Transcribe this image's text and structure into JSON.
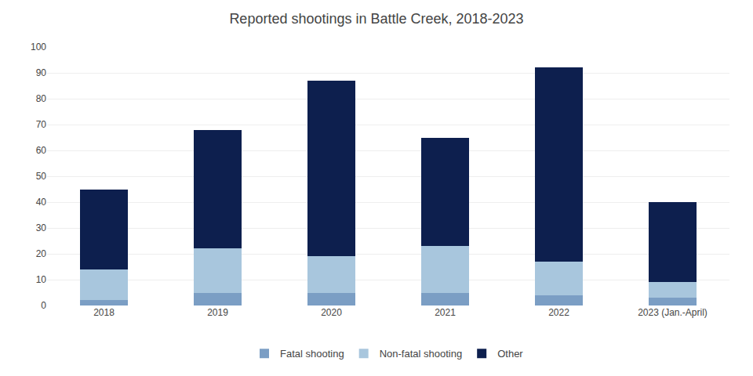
{
  "chart_data": {
    "type": "bar",
    "title": "Reported shootings in Battle Creek, 2018-2023",
    "categories": [
      "2018",
      "2019",
      "2020",
      "2021",
      "2022",
      "2023 (Jan.-April)"
    ],
    "series": [
      {
        "name": "Fatal shooting",
        "color": "#7b9ec4",
        "values": [
          2,
          5,
          5,
          5,
          4,
          3
        ]
      },
      {
        "name": "Non-fatal shooting",
        "color": "#a8c6dd",
        "values": [
          12,
          17,
          14,
          18,
          13,
          6
        ]
      },
      {
        "name": "Other",
        "color": "#0d1f4e",
        "values": [
          31,
          46,
          68,
          42,
          75,
          31
        ]
      }
    ],
    "stacked": true,
    "ylim": [
      0,
      100
    ],
    "yticks": [
      0,
      10,
      20,
      30,
      40,
      50,
      60,
      70,
      80,
      90,
      100
    ],
    "grid": true,
    "legend": "bottom"
  }
}
